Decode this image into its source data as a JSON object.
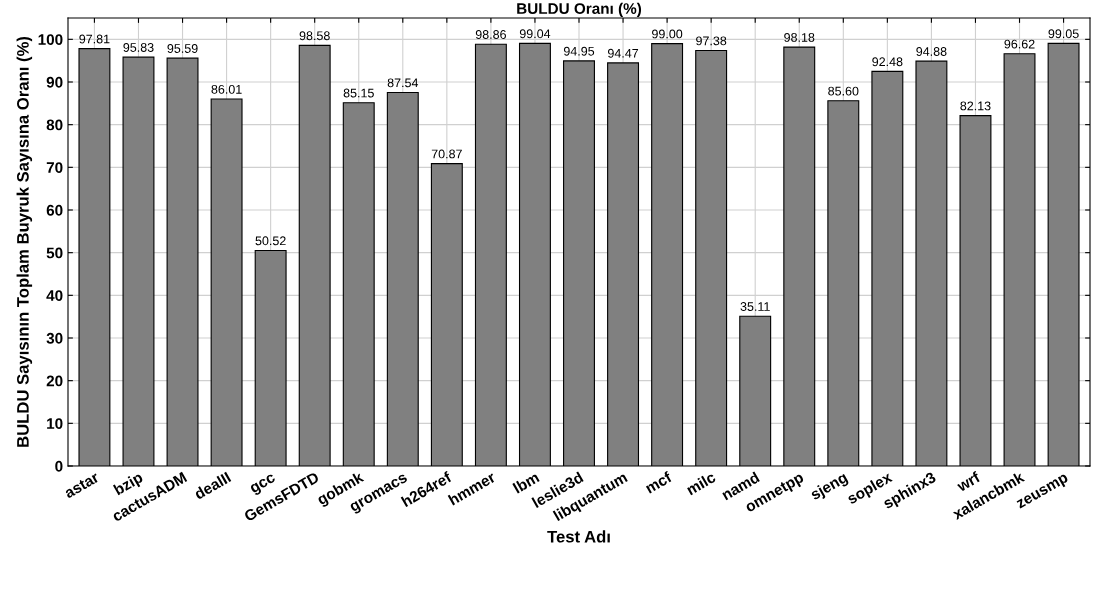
{
  "chart_data": {
    "type": "bar",
    "title": "BULDU Oranı (%)",
    "xlabel": "Test Adı",
    "ylabel": "BULDU Sayısının Toplam Buyruk Sayısına Oranı (%)",
    "categories": [
      "astar",
      "bzip",
      "cactusADM",
      "dealII",
      "gcc",
      "GemsFDTD",
      "gobmk",
      "gromacs",
      "h264ref",
      "hmmer",
      "lbm",
      "leslie3d",
      "libquantum",
      "mcf",
      "milc",
      "namd",
      "omnetpp",
      "sjeng",
      "soplex",
      "sphinx3",
      "wrf",
      "xalancbmk",
      "zeusmp"
    ],
    "values": [
      97.81,
      95.83,
      95.59,
      86.01,
      50.52,
      98.58,
      85.15,
      87.54,
      70.87,
      98.86,
      99.04,
      94.95,
      94.47,
      99.0,
      97.38,
      35.11,
      98.18,
      85.6,
      92.48,
      94.88,
      82.13,
      96.62,
      99.05
    ],
    "value_labels": [
      "97.81",
      "95.83",
      "95.59",
      "86.01",
      "50.52",
      "98.58",
      "85.15",
      "87.54",
      "70.87",
      "98.86",
      "99.04",
      "94.95",
      "94.47",
      "99.00",
      "97.38",
      "35.11",
      "98.18",
      "85.60",
      "92.48",
      "94.88",
      "82.13",
      "96.62",
      "99.05"
    ],
    "color": "#808080",
    "ylim": [
      0,
      105
    ],
    "yticks": [
      0,
      10,
      20,
      30,
      40,
      50,
      60,
      70,
      80,
      90,
      100
    ],
    "grid": true,
    "legend": false
  }
}
